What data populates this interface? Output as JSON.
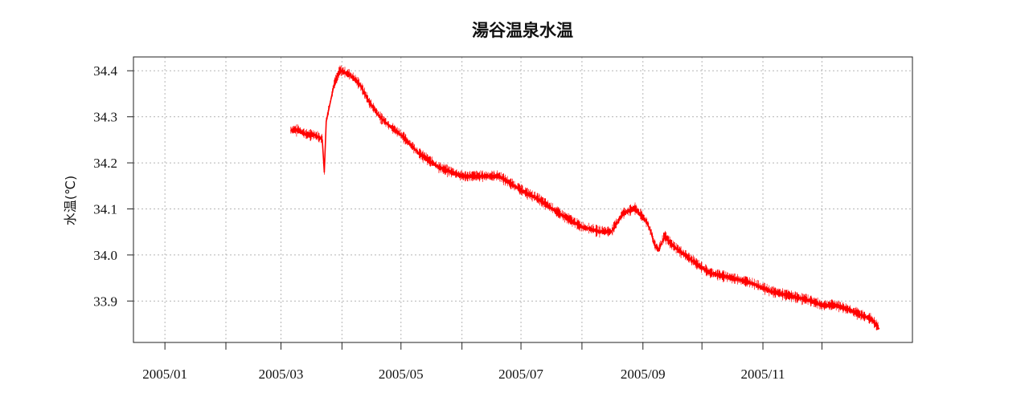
{
  "chart_data": {
    "type": "line",
    "title": "湯谷温泉水温",
    "xlabel": "",
    "ylabel": "水温(℃)",
    "x_ticks": [
      "2005/01",
      "2005/02",
      "2005/03",
      "2005/04",
      "2005/05",
      "2005/06",
      "2005/07",
      "2005/08",
      "2005/09",
      "2005/10",
      "2005/11",
      "2005/12"
    ],
    "x_tick_labels": [
      "2005/01",
      "",
      "2005/03",
      "",
      "2005/05",
      "",
      "2005/07",
      "",
      "2005/09",
      "",
      "2005/11",
      ""
    ],
    "xlim": [
      "2004-12-16",
      "2006-01-16"
    ],
    "ylim": [
      33.81,
      34.43
    ],
    "y_ticks": [
      33.9,
      34.0,
      34.1,
      34.2,
      34.3,
      34.4
    ],
    "y_tick_labels": [
      "33.9",
      "34.0",
      "34.1",
      "34.2",
      "34.3",
      "34.4"
    ],
    "grid": true,
    "color": "#ff0000",
    "series": [
      {
        "name": "",
        "color": "#ff0000",
        "points": [
          [
            "2005-03-06",
            34.27
          ],
          [
            "2005-03-10",
            34.27
          ],
          [
            "2005-03-14",
            34.26
          ],
          [
            "2005-03-18",
            34.26
          ],
          [
            "2005-03-22",
            34.25
          ],
          [
            "2005-03-23",
            34.18
          ],
          [
            "2005-03-24",
            34.29
          ],
          [
            "2005-03-26",
            34.33
          ],
          [
            "2005-03-28",
            34.37
          ],
          [
            "2005-03-31",
            34.4
          ],
          [
            "2005-04-05",
            34.39
          ],
          [
            "2005-04-10",
            34.37
          ],
          [
            "2005-04-15",
            34.33
          ],
          [
            "2005-04-20",
            34.3
          ],
          [
            "2005-04-25",
            34.28
          ],
          [
            "2005-05-01",
            34.26
          ],
          [
            "2005-05-10",
            34.22
          ],
          [
            "2005-05-20",
            34.19
          ],
          [
            "2005-06-01",
            34.17
          ],
          [
            "2005-06-10",
            34.17
          ],
          [
            "2005-06-20",
            34.17
          ],
          [
            "2005-07-01",
            34.14
          ],
          [
            "2005-07-10",
            34.12
          ],
          [
            "2005-07-20",
            34.09
          ],
          [
            "2005-08-01",
            34.06
          ],
          [
            "2005-08-10",
            34.05
          ],
          [
            "2005-08-16",
            34.05
          ],
          [
            "2005-08-22",
            34.09
          ],
          [
            "2005-08-28",
            34.1
          ],
          [
            "2005-09-03",
            34.07
          ],
          [
            "2005-09-05",
            34.05
          ],
          [
            "2005-09-07",
            34.02
          ],
          [
            "2005-09-09",
            34.01
          ],
          [
            "2005-09-12",
            34.04
          ],
          [
            "2005-09-16",
            34.02
          ],
          [
            "2005-09-25",
            33.99
          ],
          [
            "2005-10-05",
            33.96
          ],
          [
            "2005-10-15",
            33.95
          ],
          [
            "2005-10-25",
            33.94
          ],
          [
            "2005-11-05",
            33.92
          ],
          [
            "2005-11-15",
            33.91
          ],
          [
            "2005-11-25",
            33.9
          ],
          [
            "2005-12-01",
            33.89
          ],
          [
            "2005-12-08",
            33.89
          ],
          [
            "2005-12-15",
            33.88
          ],
          [
            "2005-12-20",
            33.87
          ],
          [
            "2005-12-26",
            33.86
          ],
          [
            "2005-12-30",
            33.84
          ]
        ]
      }
    ]
  }
}
